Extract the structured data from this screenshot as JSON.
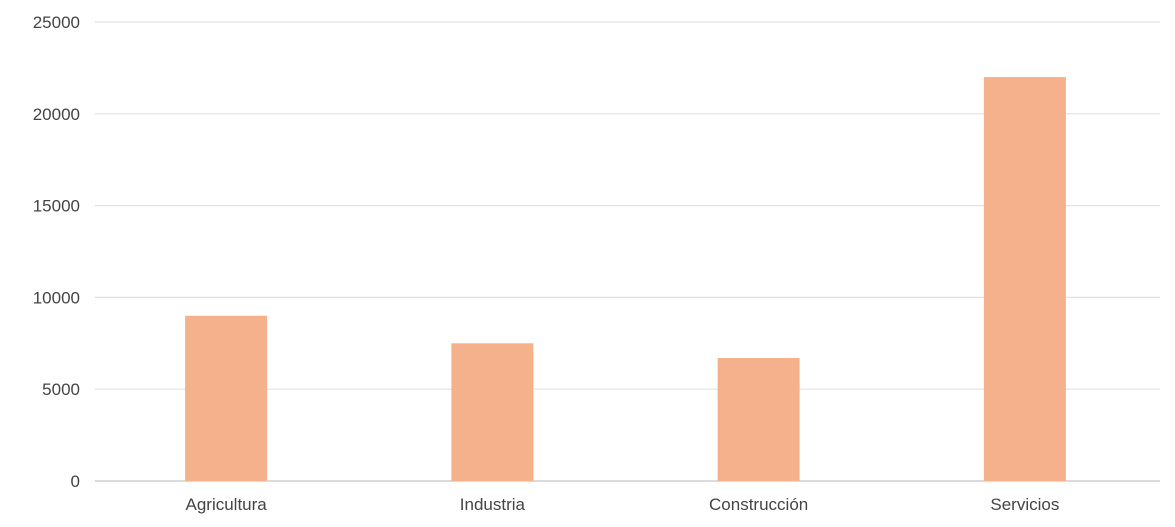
{
  "chart_data": {
    "type": "bar",
    "categories": [
      "Agricultura",
      "Industria",
      "Construcción",
      "Servicios"
    ],
    "values": [
      9000,
      7500,
      6700,
      22000
    ],
    "ylim": [
      0,
      25000
    ],
    "yticks": [
      0,
      5000,
      10000,
      15000,
      20000,
      25000
    ],
    "grid": true,
    "legend": "none",
    "colors": {
      "bar": "#f5b08c",
      "grid": "#e2e2e2",
      "axis": "#cfcfcf",
      "text": "#444444"
    }
  }
}
